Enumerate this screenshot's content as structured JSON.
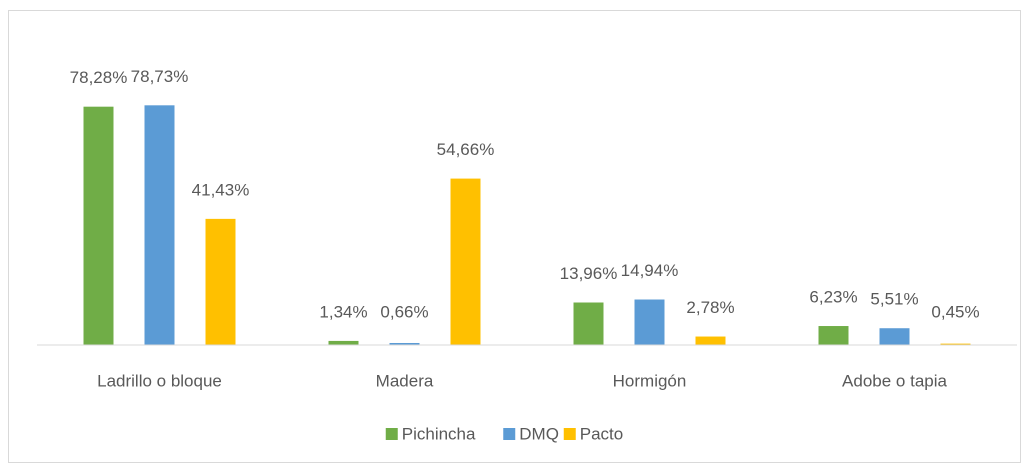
{
  "chart_data": {
    "type": "bar",
    "categories": [
      "Ladrillo o bloque",
      "Madera",
      "Hormigón",
      "Adobe o tapia"
    ],
    "series": [
      {
        "name": "Pichincha",
        "color": "#70ad47",
        "values": [
          78.28,
          1.34,
          13.96,
          6.23
        ],
        "value_labels": [
          "78,28%",
          "1,34%",
          "13,96%",
          "6,23%"
        ]
      },
      {
        "name": "DMQ",
        "color": "#5b9bd5",
        "values": [
          78.73,
          0.66,
          14.94,
          5.51
        ],
        "value_labels": [
          "78,73%",
          "0,66%",
          "14,94%",
          "5,51%"
        ]
      },
      {
        "name": "Pacto",
        "color": "#ffc000",
        "values": [
          41.43,
          54.66,
          2.78,
          0.45
        ],
        "value_labels": [
          "41,43%",
          "54,66%",
          "2,78%",
          "0,45%"
        ]
      }
    ],
    "ylim": [
      0,
      90
    ],
    "legend": "bottom"
  }
}
